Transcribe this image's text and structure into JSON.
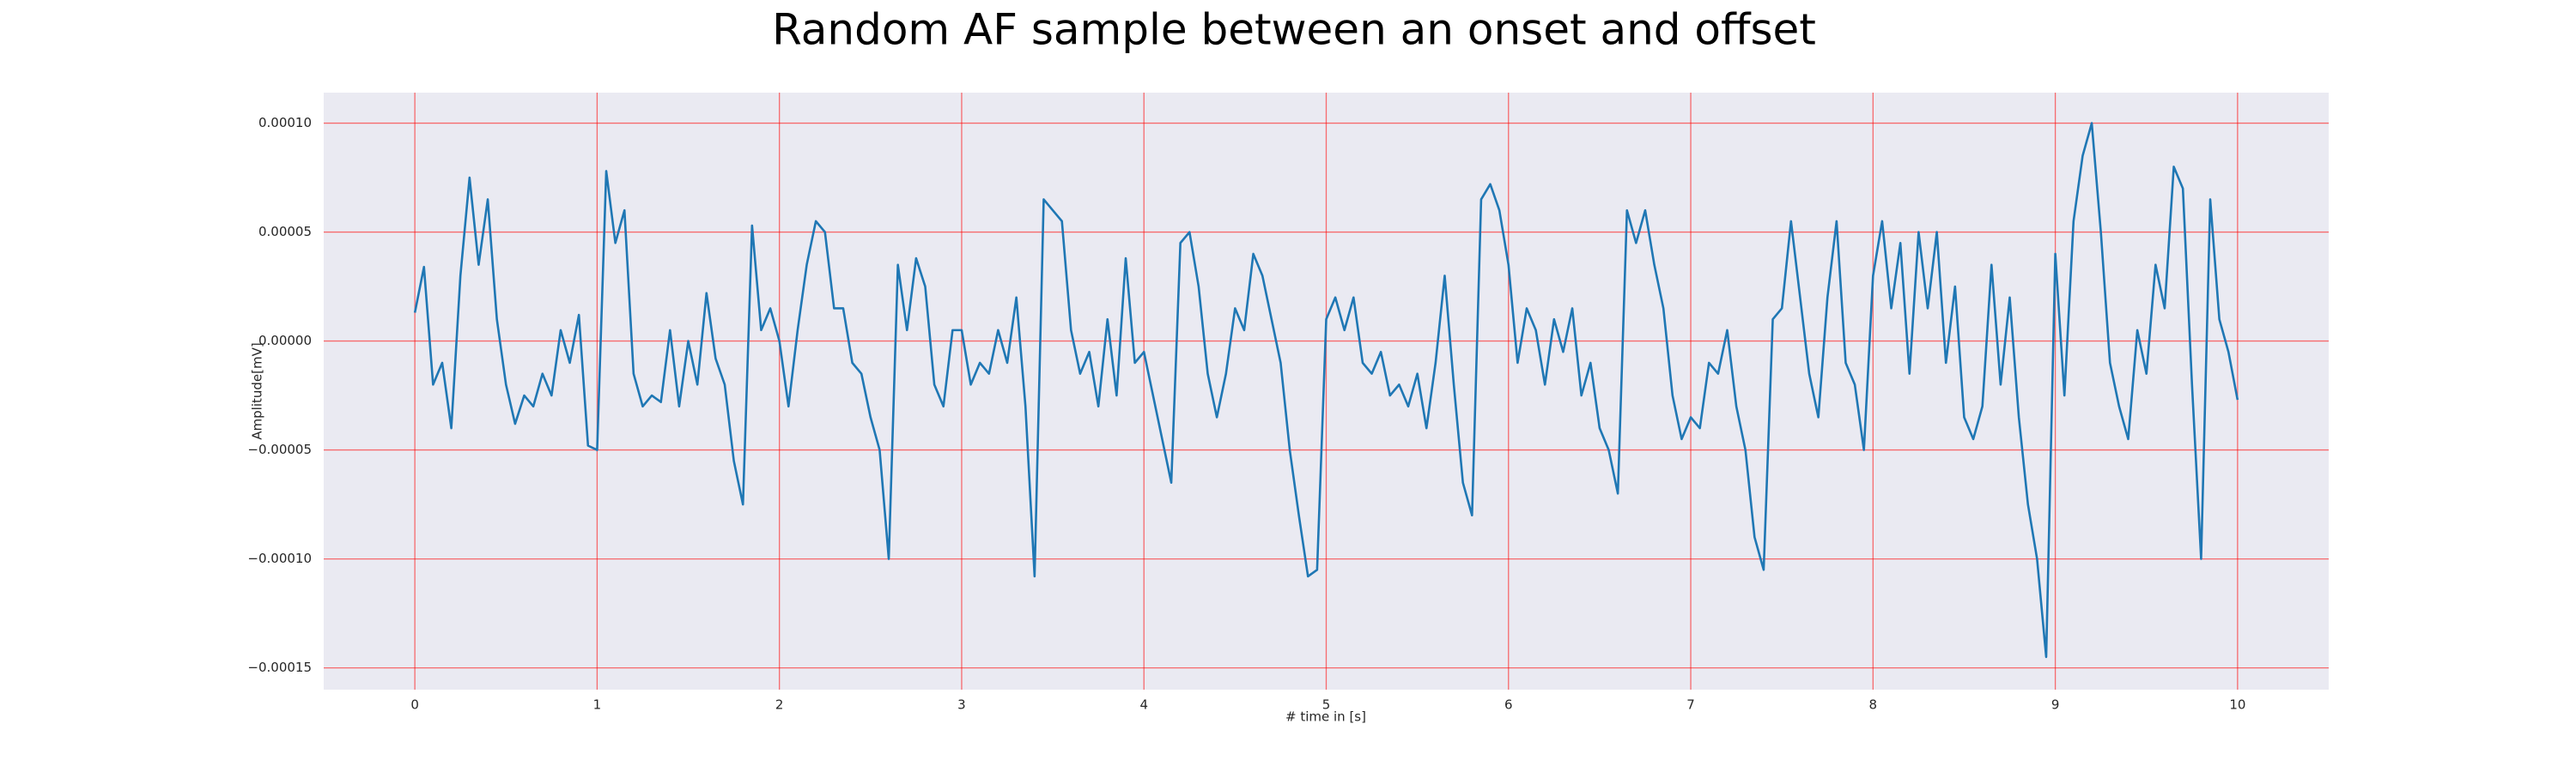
{
  "chart_data": {
    "type": "line",
    "title": "Random AF sample between an onset and offset",
    "xlabel": "# time in [s]",
    "ylabel": "Amplitude[mV]",
    "x": [
      0,
      0.05,
      0.1,
      0.15,
      0.2,
      0.25,
      0.3,
      0.35,
      0.4,
      0.45,
      0.5,
      0.55,
      0.6,
      0.65,
      0.7,
      0.75,
      0.8,
      0.85,
      0.9,
      0.95,
      1,
      1.05,
      1.1,
      1.15,
      1.2,
      1.25,
      1.3,
      1.35,
      1.4,
      1.45,
      1.5,
      1.55,
      1.6,
      1.65,
      1.7,
      1.75,
      1.8,
      1.85,
      1.9,
      1.95,
      2,
      2.05,
      2.1,
      2.15,
      2.2,
      2.25,
      2.3,
      2.35,
      2.4,
      2.45,
      2.5,
      2.55,
      2.6,
      2.65,
      2.7,
      2.75,
      2.8,
      2.85,
      2.9,
      2.95,
      3,
      3.05,
      3.1,
      3.15,
      3.2,
      3.25,
      3.3,
      3.35,
      3.4,
      3.45,
      3.5,
      3.55,
      3.6,
      3.65,
      3.7,
      3.75,
      3.8,
      3.85,
      3.9,
      3.95,
      4,
      4.05,
      4.1,
      4.15,
      4.2,
      4.25,
      4.3,
      4.35,
      4.4,
      4.45,
      4.5,
      4.55,
      4.6,
      4.65,
      4.7,
      4.75,
      4.8,
      4.85,
      4.9,
      4.95,
      5,
      5.05,
      5.1,
      5.15,
      5.2,
      5.25,
      5.3,
      5.35,
      5.4,
      5.45,
      5.5,
      5.55,
      5.6,
      5.65,
      5.7,
      5.75,
      5.8,
      5.85,
      5.9,
      5.95,
      6,
      6.05,
      6.1,
      6.15,
      6.2,
      6.25,
      6.3,
      6.35,
      6.4,
      6.45,
      6.5,
      6.55,
      6.6,
      6.65,
      6.7,
      6.75,
      6.8,
      6.85,
      6.9,
      6.95,
      7,
      7.05,
      7.1,
      7.15,
      7.2,
      7.25,
      7.3,
      7.35,
      7.4,
      7.45,
      7.5,
      7.55,
      7.6,
      7.65,
      7.7,
      7.75,
      7.8,
      7.85,
      7.9,
      7.95,
      8,
      8.05,
      8.1,
      8.15,
      8.2,
      8.25,
      8.3,
      8.35,
      8.4,
      8.45,
      8.5,
      8.55,
      8.6,
      8.65,
      8.7,
      8.75,
      8.8,
      8.85,
      8.9,
      8.95,
      9,
      9.05,
      9.1,
      9.15,
      9.2,
      9.25,
      9.3,
      9.35,
      9.4,
      9.45,
      9.5,
      9.55,
      9.6,
      9.65,
      9.7,
      9.75,
      9.8,
      9.85,
      9.9,
      9.95,
      10
    ],
    "series": [
      {
        "color": "#1f77b4",
        "values": [
          1.3e-05,
          3.4e-05,
          -2e-05,
          -1e-05,
          -4e-05,
          3e-05,
          7.5e-05,
          3.5e-05,
          6.5e-05,
          1e-05,
          -2e-05,
          -3.8e-05,
          -2.5e-05,
          -3e-05,
          -1.5e-05,
          -2.5e-05,
          5e-06,
          -1e-05,
          1.2e-05,
          -4.8e-05,
          -5e-05,
          7.8e-05,
          4.5e-05,
          6e-05,
          -1.5e-05,
          -3e-05,
          -2.5e-05,
          -2.8e-05,
          5e-06,
          -3e-05,
          0,
          -2e-05,
          2.2e-05,
          -8e-06,
          -2e-05,
          -5.5e-05,
          -7.5e-05,
          5.3e-05,
          5e-06,
          1.5e-05,
          0,
          -3e-05,
          5e-06,
          3.5e-05,
          5.5e-05,
          5e-05,
          1.5e-05,
          1.5e-05,
          -1e-05,
          -1.5e-05,
          -3.5e-05,
          -5e-05,
          -0.0001,
          3.5e-05,
          5e-06,
          3.8e-05,
          2.5e-05,
          -2e-05,
          -3e-05,
          5e-06,
          5e-06,
          -2e-05,
          -1e-05,
          -1.5e-05,
          5e-06,
          -1e-05,
          2e-05,
          -3e-05,
          -0.000108,
          6.5e-05,
          6e-05,
          5.5e-05,
          5e-06,
          -1.5e-05,
          -5e-06,
          -3e-05,
          1e-05,
          -2.5e-05,
          3.8e-05,
          -1e-05,
          -5e-06,
          -2.5e-05,
          -4.5e-05,
          -6.5e-05,
          4.5e-05,
          5e-05,
          2.5e-05,
          -1.5e-05,
          -3.5e-05,
          -1.5e-05,
          1.5e-05,
          5e-06,
          4e-05,
          3e-05,
          1e-05,
          -1e-05,
          -5e-05,
          -8e-05,
          -0.000108,
          -0.000105,
          1e-05,
          2e-05,
          5e-06,
          2e-05,
          -1e-05,
          -1.5e-05,
          -5e-06,
          -2.5e-05,
          -2e-05,
          -3e-05,
          -1.5e-05,
          -4e-05,
          -1e-05,
          3e-05,
          -2e-05,
          -6.5e-05,
          -8e-05,
          6.5e-05,
          7.2e-05,
          6e-05,
          3.5e-05,
          -1e-05,
          1.5e-05,
          5e-06,
          -2e-05,
          1e-05,
          -5e-06,
          1.5e-05,
          -2.5e-05,
          -1e-05,
          -4e-05,
          -5e-05,
          -7e-05,
          6e-05,
          4.5e-05,
          6e-05,
          3.5e-05,
          1.5e-05,
          -2.5e-05,
          -4.5e-05,
          -3.5e-05,
          -4e-05,
          -1e-05,
          -1.5e-05,
          5e-06,
          -3e-05,
          -5e-05,
          -9e-05,
          -0.000105,
          1e-05,
          1.5e-05,
          5.5e-05,
          2e-05,
          -1.5e-05,
          -3.5e-05,
          2e-05,
          5.5e-05,
          -1e-05,
          -2e-05,
          -5e-05,
          3e-05,
          5.5e-05,
          1.5e-05,
          4.5e-05,
          -1.5e-05,
          5e-05,
          1.5e-05,
          5e-05,
          -1e-05,
          2.5e-05,
          -3.5e-05,
          -4.5e-05,
          -3e-05,
          3.5e-05,
          -2e-05,
          2e-05,
          -3.5e-05,
          -7.5e-05,
          -0.0001,
          -0.000145,
          4e-05,
          -2.5e-05,
          5.5e-05,
          8.5e-05,
          0.0001,
          5e-05,
          -1e-05,
          -3e-05,
          -4.5e-05,
          5e-06,
          -1.5e-05,
          3.5e-05,
          1.5e-05,
          8e-05,
          7e-05,
          -2e-05,
          -0.0001,
          6.5e-05,
          1e-05,
          -5e-06,
          -2.7e-05
        ]
      }
    ],
    "xlim": [
      -0.5,
      10.5
    ],
    "ylim": [
      -0.00016,
      0.000114
    ],
    "xticks": [
      0,
      1,
      2,
      3,
      4,
      5,
      6,
      7,
      8,
      9,
      10
    ],
    "yticks": [
      {
        "value": -0.00015,
        "label": "−0.00015"
      },
      {
        "value": -0.0001,
        "label": "−0.00010"
      },
      {
        "value": -5e-05,
        "label": "−0.00005"
      },
      {
        "value": 0,
        "label": "0.00000"
      },
      {
        "value": 5e-05,
        "label": "0.00005"
      },
      {
        "value": 0.0001,
        "label": "0.00010"
      }
    ],
    "grid": true,
    "grid_color": "#ff0000",
    "background": "#eaeaf2"
  }
}
